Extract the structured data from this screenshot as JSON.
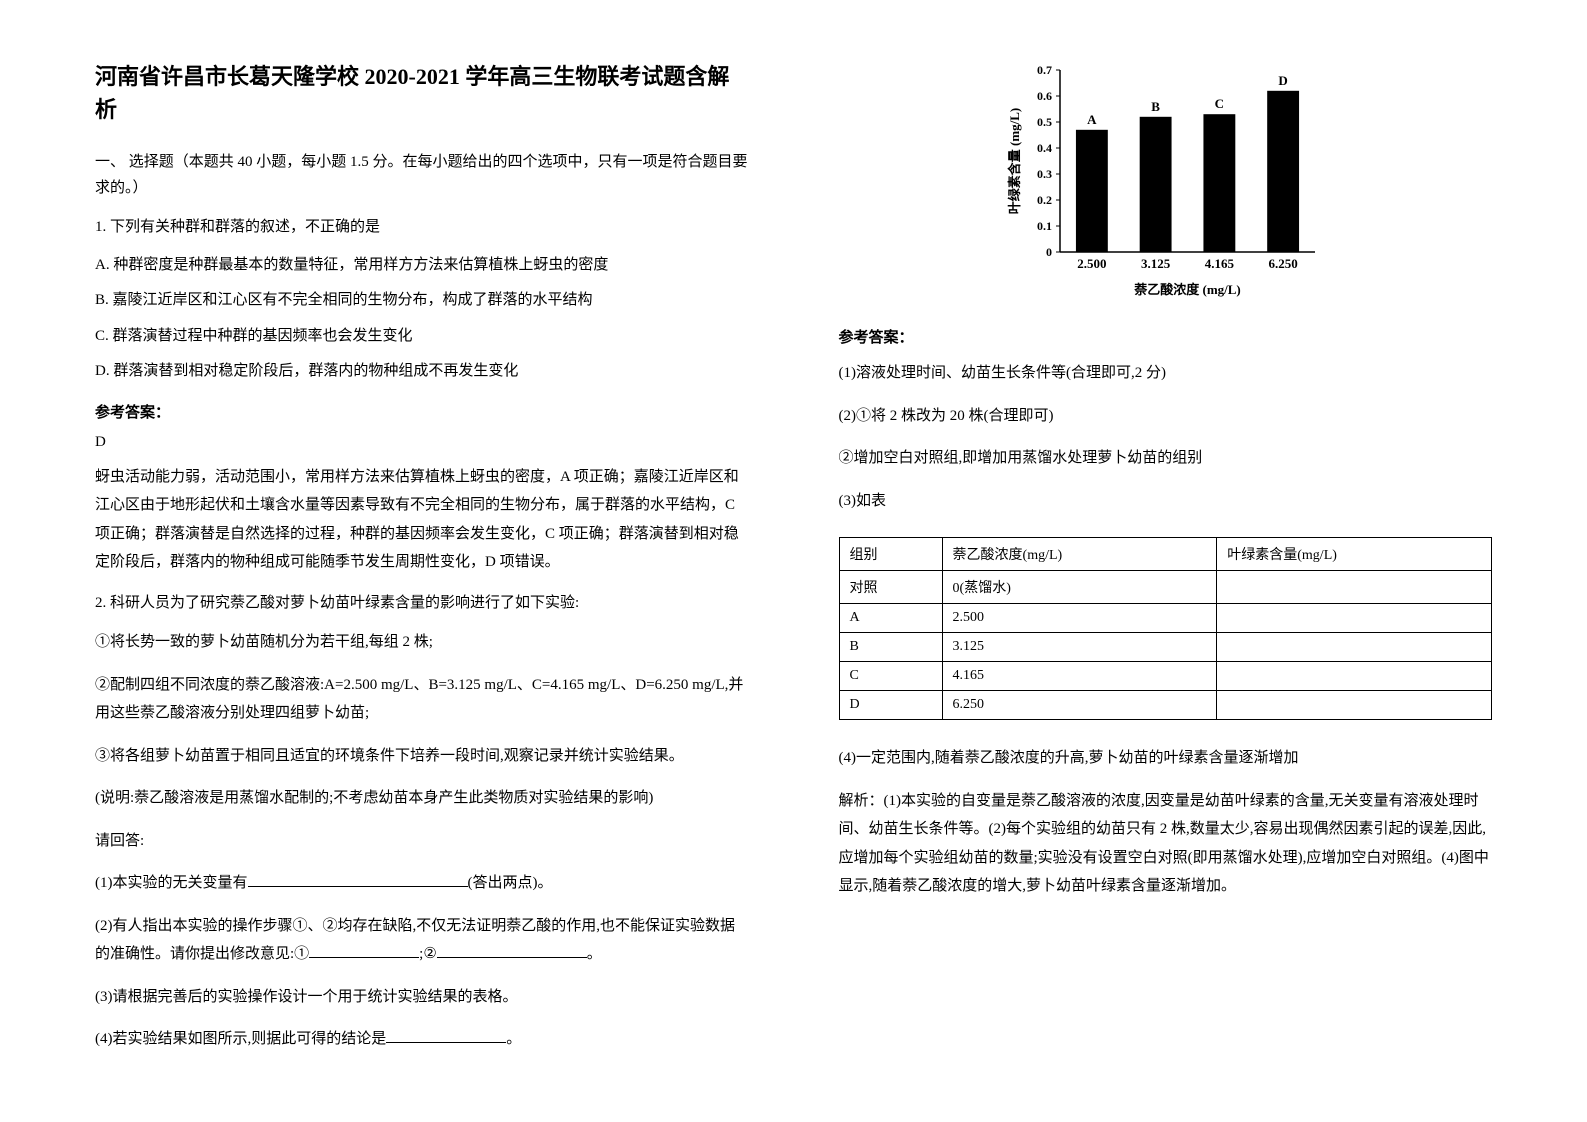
{
  "title": "河南省许昌市长葛天隆学校 2020-2021 学年高三生物联考试题含解析",
  "section1": "一、 选择题（本题共 40 小题，每小题 1.5 分。在每小题给出的四个选项中，只有一项是符合题目要求的。）",
  "q1": {
    "stem": "1. 下列有关种群和群落的叙述，不正确的是",
    "A": "A.  种群密度是种群最基本的数量特征，常用样方方法来估算植株上蚜虫的密度",
    "B": "B.  嘉陵江近岸区和江心区有不完全相同的生物分布，构成了群落的水平结构",
    "C": "C.  群落演替过程中种群的基因频率也会发生变化",
    "D": "D.  群落演替到相对稳定阶段后，群落内的物种组成不再发生变化",
    "ansLabel": "参考答案：",
    "ans": "D",
    "expl": "蚜虫活动能力弱，活动范围小，常用样方法来估算植株上蚜虫的密度，A 项正确；嘉陵江近岸区和江心区由于地形起伏和土壤含水量等因素导致有不完全相同的生物分布，属于群落的水平结构，C 项正确；群落演替是自然选择的过程，种群的基因频率会发生变化，C 项正确；群落演替到相对稳定阶段后，群落内的物种组成可能随季节发生周期性变化，D 项错误。"
  },
  "q2": {
    "stem": "2. 科研人员为了研究萘乙酸对萝卜幼苗叶绿素含量的影响进行了如下实验:",
    "s1": "①将长势一致的萝卜幼苗随机分为若干组,每组 2 株;",
    "s2": "②配制四组不同浓度的萘乙酸溶液:A=2.500 mg/L、B=3.125 mg/L、C=4.165 mg/L、D=6.250 mg/L,并用这些萘乙酸溶液分别处理四组萝卜幼苗;",
    "s3": "③将各组萝卜幼苗置于相同且适宜的环境条件下培养一段时间,观察记录并统计实验结果。",
    "note": "(说明:萘乙酸溶液是用蒸馏水配制的;不考虑幼苗本身产生此类物质对实验结果的影响)",
    "ask": "请回答:",
    "p1a": "(1)本实验的无关变量有",
    "p1b": "(答出两点)。",
    "p2a": "(2)有人指出本实验的操作步骤①、②均存在缺陷,不仅无法证明萘乙酸的作用,也不能保证实验数据的准确性。请你提出修改意见:①",
    "p2b": ";②",
    "p2c": "。",
    "p3": "(3)请根据完善后的实验操作设计一个用于统计实验结果的表格。",
    "p4a": "(4)若实验结果如图所示,则据此可得的结论是",
    "p4b": "。"
  },
  "chart": {
    "ylabel": "叶绿素含量 (mg/L)",
    "xlabel": "萘乙酸浓度 (mg/L)",
    "ymax": 0.7,
    "ytick_step": 0.1,
    "yticks": [
      "0",
      "0.1",
      "0.2",
      "0.3",
      "0.4",
      "0.5",
      "0.6",
      "0.7"
    ],
    "categories": [
      "2.500",
      "3.125",
      "4.165",
      "6.250"
    ],
    "bar_labels": [
      "A",
      "B",
      "C",
      "D"
    ],
    "values": [
      0.47,
      0.52,
      0.53,
      0.62
    ],
    "bar_color": "#000000",
    "axis_color": "#000000",
    "bar_width": 0.5
  },
  "ansLabel2": "参考答案：",
  "a1": "(1)溶液处理时间、幼苗生长条件等(合理即可,2 分)",
  "a2a": "(2)①将 2 株改为 20 株(合理即可)",
  "a2b": "②增加空白对照组,即增加用蒸馏水处理萝卜幼苗的组别",
  "a3": "(3)如表",
  "table": {
    "headers": [
      "组别",
      "萘乙酸浓度(mg/L)",
      "叶绿素含量(mg/L)"
    ],
    "rows": [
      [
        "对照",
        "0(蒸馏水)",
        ""
      ],
      [
        "A",
        "2.500",
        ""
      ],
      [
        "B",
        "3.125",
        ""
      ],
      [
        "C",
        "4.165",
        ""
      ],
      [
        "D",
        "6.250",
        ""
      ]
    ]
  },
  "a4": "(4)一定范围内,随着萘乙酸浓度的升高,萝卜幼苗的叶绿素含量逐渐增加",
  "explain": "解析：(1)本实验的自变量是萘乙酸溶液的浓度,因变量是幼苗叶绿素的含量,无关变量有溶液处理时间、幼苗生长条件等。(2)每个实验组的幼苗只有 2 株,数量太少,容易出现偶然因素引起的误差,因此,应增加每个实验组幼苗的数量;实验没有设置空白对照(即用蒸馏水处理),应增加空白对照组。(4)图中显示,随着萘乙酸浓度的增大,萝卜幼苗叶绿素含量逐渐增加。"
}
